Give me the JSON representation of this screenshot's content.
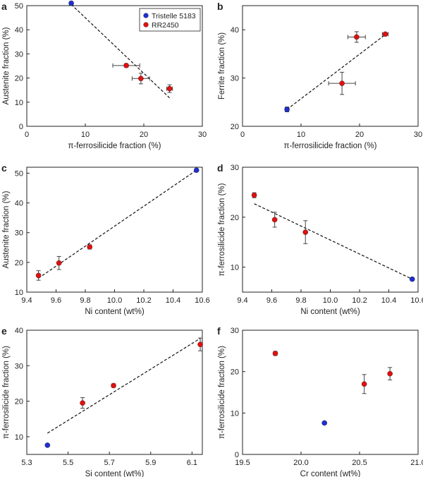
{
  "legend": {
    "entries": [
      {
        "label": "Tristelle 5183",
        "color": "#1f2fd0"
      },
      {
        "label": "RR2450",
        "color": "#e01010"
      }
    ]
  },
  "chart_data": [
    {
      "panel": "a",
      "type": "scatter",
      "xlabel": "π-ferrosilicide fraction (%)",
      "ylabel": "Austenite fraction (%)",
      "xlim": [
        0,
        30
      ],
      "ylim": [
        0,
        50
      ],
      "xticks": [
        0,
        10,
        20,
        30
      ],
      "xtick_labels": [
        "0",
        "10",
        "20",
        "30"
      ],
      "yticks": [
        0,
        10,
        20,
        30,
        40,
        50
      ],
      "ytick_labels": [
        "0",
        "10",
        "20",
        "30",
        "40",
        "50"
      ],
      "series": [
        {
          "name": "Tristelle 5183",
          "color": "#1f2fd0",
          "points": [
            {
              "x": 7.6,
              "y": 51.0,
              "xerr": 0.3,
              "yerr": 0.3
            }
          ]
        },
        {
          "name": "RR2450",
          "color": "#e01010",
          "points": [
            {
              "x": 17.0,
              "y": 25.2,
              "xerr": 2.3,
              "yerr": 0.7
            },
            {
              "x": 19.5,
              "y": 19.8,
              "xerr": 1.5,
              "yerr": 2.2
            },
            {
              "x": 24.4,
              "y": 15.6,
              "xerr": 0.5,
              "yerr": 1.6
            }
          ]
        }
      ],
      "fit_line": {
        "x1": 7.6,
        "y1": 50.5,
        "x2": 24.4,
        "y2": 11.8
      },
      "legend_shown": true
    },
    {
      "panel": "b",
      "type": "scatter",
      "xlabel": "π-ferrosilicide fraction (%)",
      "ylabel": "Ferrite fraction (%)",
      "xlim": [
        0,
        30
      ],
      "ylim": [
        20,
        45
      ],
      "xticks": [
        0,
        10,
        20,
        30
      ],
      "xtick_labels": [
        "0",
        "10",
        "20",
        "30"
      ],
      "yticks": [
        20,
        30,
        40
      ],
      "ytick_labels": [
        "20",
        "30",
        "40"
      ],
      "series": [
        {
          "name": "Tristelle 5183",
          "color": "#1f2fd0",
          "points": [
            {
              "x": 7.6,
              "y": 23.5,
              "xerr": 0.3,
              "yerr": 0.5
            }
          ]
        },
        {
          "name": "RR2450",
          "color": "#e01010",
          "points": [
            {
              "x": 17.0,
              "y": 28.9,
              "xerr": 2.3,
              "yerr": 2.3
            },
            {
              "x": 19.5,
              "y": 38.5,
              "xerr": 1.5,
              "yerr": 1.1
            },
            {
              "x": 24.4,
              "y": 39.1,
              "xerr": 0.5,
              "yerr": 0.3
            }
          ]
        }
      ],
      "fit_line": {
        "x1": 7.6,
        "y1": 23.5,
        "x2": 24.4,
        "y2": 39.0
      }
    },
    {
      "panel": "c",
      "type": "scatter",
      "xlabel": "Ni content (wt%)",
      "ylabel": "Austenite fraction (%)",
      "xlim": [
        9.4,
        10.6
      ],
      "ylim": [
        10,
        52
      ],
      "xticks": [
        9.4,
        9.6,
        9.8,
        10.0,
        10.2,
        10.4,
        10.6
      ],
      "xtick_labels": [
        "9.4",
        "9.6",
        "9.8",
        "10.0",
        "10.2",
        "10.4",
        "10.6"
      ],
      "yticks": [
        10,
        20,
        30,
        40,
        50
      ],
      "ytick_labels": [
        "10",
        "20",
        "30",
        "40",
        "50"
      ],
      "series": [
        {
          "name": "Tristelle 5183",
          "color": "#1f2fd0",
          "points": [
            {
              "x": 10.56,
              "y": 51.0,
              "yerr": 0.3
            }
          ]
        },
        {
          "name": "RR2450",
          "color": "#e01010",
          "points": [
            {
              "x": 9.48,
              "y": 15.6,
              "yerr": 1.6
            },
            {
              "x": 9.62,
              "y": 19.8,
              "yerr": 2.2
            },
            {
              "x": 9.83,
              "y": 25.2,
              "yerr": 0.7
            }
          ]
        }
      ],
      "fit_line": {
        "x1": 9.48,
        "y1": 14.7,
        "x2": 10.56,
        "y2": 51.0
      }
    },
    {
      "panel": "d",
      "type": "scatter",
      "xlabel": "Ni content (wt%)",
      "ylabel": "π-ferrosilicide fraction (%)",
      "xlim": [
        9.4,
        10.6
      ],
      "ylim": [
        5,
        30
      ],
      "xticks": [
        9.4,
        9.6,
        9.8,
        10.0,
        10.2,
        10.4,
        10.6
      ],
      "xtick_labels": [
        "9.4",
        "9.6",
        "9.8",
        "10.0",
        "10.2",
        "10.4",
        "10.6"
      ],
      "yticks": [
        10,
        20,
        30
      ],
      "ytick_labels": [
        "10",
        "20",
        "30"
      ],
      "series": [
        {
          "name": "Tristelle 5183",
          "color": "#1f2fd0",
          "points": [
            {
              "x": 10.56,
              "y": 7.6,
              "yerr": 0.3
            }
          ]
        },
        {
          "name": "RR2450",
          "color": "#e01010",
          "points": [
            {
              "x": 9.48,
              "y": 24.4,
              "yerr": 0.5
            },
            {
              "x": 9.62,
              "y": 19.5,
              "yerr": 1.5
            },
            {
              "x": 9.83,
              "y": 17.0,
              "yerr": 2.3
            }
          ]
        }
      ],
      "fit_line": {
        "x1": 9.48,
        "y1": 22.7,
        "x2": 10.56,
        "y2": 7.6
      }
    },
    {
      "panel": "e",
      "type": "scatter",
      "xlabel": "Si content (wt%)",
      "ylabel": "π-ferrosilicide fraction (%)",
      "xlim": [
        5.3,
        6.15
      ],
      "ylim": [
        5,
        40
      ],
      "xticks": [
        5.3,
        5.5,
        5.7,
        5.9,
        6.1
      ],
      "xtick_labels": [
        "5.3",
        "5.5",
        "5.7",
        "5.9",
        "6.1"
      ],
      "yticks": [
        10,
        20,
        30,
        40
      ],
      "ytick_labels": [
        "10",
        "20",
        "30",
        "40"
      ],
      "series": [
        {
          "name": "Tristelle 5183",
          "color": "#1f2fd0",
          "points": [
            {
              "x": 5.4,
              "y": 7.6,
              "yerr": 0.3
            }
          ]
        },
        {
          "name": "RR2450",
          "color": "#e01010",
          "points": [
            {
              "x": 5.57,
              "y": 19.5,
              "yerr": 1.5
            },
            {
              "x": 5.72,
              "y": 24.4,
              "yerr": 0.5
            },
            {
              "x": 6.14,
              "y": 36.0,
              "yerr": 1.8
            }
          ]
        }
      ],
      "fit_line": {
        "x1": 5.4,
        "y1": 11.0,
        "x2": 6.14,
        "y2": 37.7
      }
    },
    {
      "panel": "f",
      "type": "scatter",
      "xlabel": "Cr content (wt%)",
      "ylabel": "π-ferrosilicide fraction (%)",
      "xlim": [
        19.5,
        21.0
      ],
      "ylim": [
        0,
        30
      ],
      "xticks": [
        19.5,
        20.0,
        20.5,
        21.0
      ],
      "xtick_labels": [
        "19.5",
        "20.0",
        "20.5",
        "21.0"
      ],
      "yticks": [
        0,
        10,
        20,
        30
      ],
      "ytick_labels": [
        "0",
        "10",
        "20",
        "30"
      ],
      "series": [
        {
          "name": "Tristelle 5183",
          "color": "#1f2fd0",
          "points": [
            {
              "x": 20.2,
              "y": 7.6,
              "yerr": 0.3
            }
          ]
        },
        {
          "name": "RR2450",
          "color": "#e01010",
          "points": [
            {
              "x": 19.78,
              "y": 24.4,
              "yerr": 0.5
            },
            {
              "x": 20.54,
              "y": 17.0,
              "yerr": 2.3
            },
            {
              "x": 20.76,
              "y": 19.5,
              "yerr": 1.5
            }
          ]
        }
      ],
      "fit_line": null
    }
  ]
}
